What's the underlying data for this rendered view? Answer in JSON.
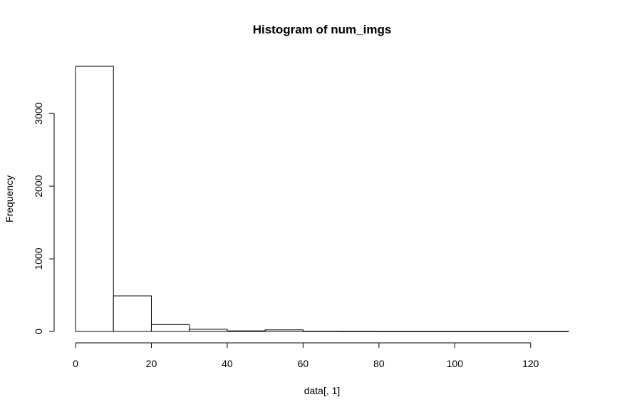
{
  "chart_data": {
    "type": "bar",
    "title": "Histogram of num_imgs",
    "xlabel": "data[, 1]",
    "ylabel": "Frequency",
    "bins": [
      {
        "start": 0,
        "end": 10,
        "count": 3650
      },
      {
        "start": 10,
        "end": 20,
        "count": 490
      },
      {
        "start": 20,
        "end": 30,
        "count": 95
      },
      {
        "start": 30,
        "end": 40,
        "count": 30
      },
      {
        "start": 40,
        "end": 50,
        "count": 8
      },
      {
        "start": 50,
        "end": 60,
        "count": 22
      },
      {
        "start": 60,
        "end": 70,
        "count": 5
      },
      {
        "start": 70,
        "end": 80,
        "count": 2
      },
      {
        "start": 80,
        "end": 90,
        "count": 1
      },
      {
        "start": 90,
        "end": 100,
        "count": 1
      },
      {
        "start": 100,
        "end": 110,
        "count": 1
      },
      {
        "start": 110,
        "end": 120,
        "count": 1
      },
      {
        "start": 120,
        "end": 130,
        "count": 1
      }
    ],
    "x_ticks": [
      0,
      20,
      40,
      60,
      80,
      100,
      120
    ],
    "y_ticks": [
      0,
      1000,
      2000,
      3000
    ],
    "xlim": [
      0,
      130
    ],
    "ylim": [
      0,
      3650
    ],
    "grid": false,
    "legend": "none"
  }
}
